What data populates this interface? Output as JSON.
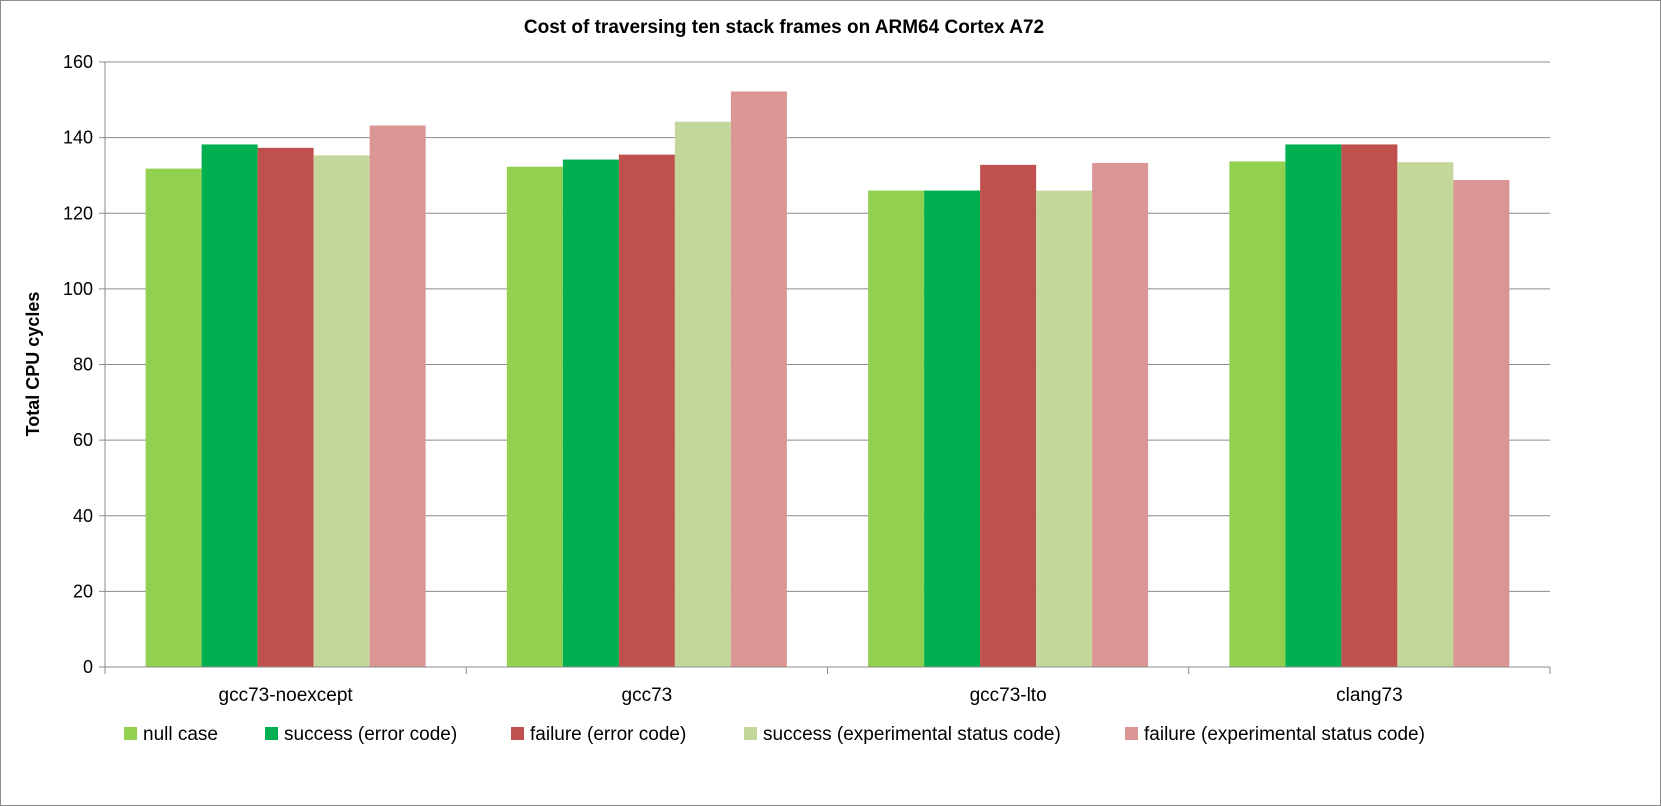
{
  "chart_data": {
    "type": "bar",
    "title": "Cost of traversing ten stack frames on ARM64 Cortex A72",
    "xlabel": "",
    "ylabel": "Total CPU cycles",
    "ylim": [
      0,
      160
    ],
    "yticks": [
      0,
      20,
      40,
      60,
      80,
      100,
      120,
      140,
      160
    ],
    "grid": true,
    "legend_position": "bottom",
    "categories": [
      "gcc73-noexcept",
      "gcc73",
      "gcc73-lto",
      "clang73"
    ],
    "series": [
      {
        "name": "null case",
        "color": "#92d050",
        "values": [
          131.8,
          132.3,
          126.0,
          133.7
        ]
      },
      {
        "name": "success (error code)",
        "color": "#00b050",
        "values": [
          138.2,
          134.2,
          126.0,
          138.2
        ]
      },
      {
        "name": "failure (error code)",
        "color": "#c0504d",
        "values": [
          137.3,
          135.5,
          132.8,
          138.2
        ]
      },
      {
        "name": "success (experimental status code)",
        "color": "#c4d79b",
        "values": [
          135.3,
          144.2,
          126.0,
          133.5
        ]
      },
      {
        "name": "failure (experimental status code)",
        "color": "#da9694",
        "values": [
          143.2,
          152.2,
          133.3,
          128.8
        ]
      }
    ]
  }
}
